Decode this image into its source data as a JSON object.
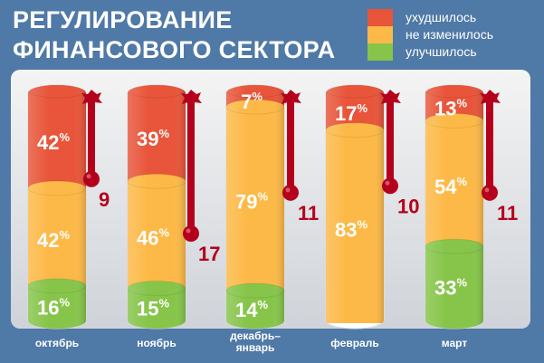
{
  "title": {
    "line1": "РЕГУЛИРОВАНИЕ",
    "line2": "ФИНАНСОВОГО СЕКТОРА"
  },
  "colors": {
    "worse": "#e8553a",
    "same": "#fdb947",
    "better": "#86c54a",
    "thermometer": "#b4001c",
    "background": "#4f79a6"
  },
  "legend": [
    {
      "label": "ухудшилось",
      "key": "worse"
    },
    {
      "label": "не изменилось",
      "key": "same"
    },
    {
      "label": "улучшилось",
      "key": "better"
    }
  ],
  "chart_data": {
    "type": "bar",
    "stacked": true,
    "unit": "%",
    "categories": [
      "октябрь",
      "ноябрь",
      "декабрь–\nянварь",
      "февраль",
      "март"
    ],
    "series": [
      {
        "name": "ухудшилось",
        "values": [
          42,
          39,
          7,
          17,
          13
        ]
      },
      {
        "name": "не изменилось",
        "values": [
          42,
          46,
          79,
          83,
          54
        ]
      },
      {
        "name": "улучшилось",
        "values": [
          16,
          15,
          14,
          0,
          33
        ]
      }
    ],
    "thermometer_values": [
      9,
      17,
      11,
      10,
      11
    ]
  }
}
